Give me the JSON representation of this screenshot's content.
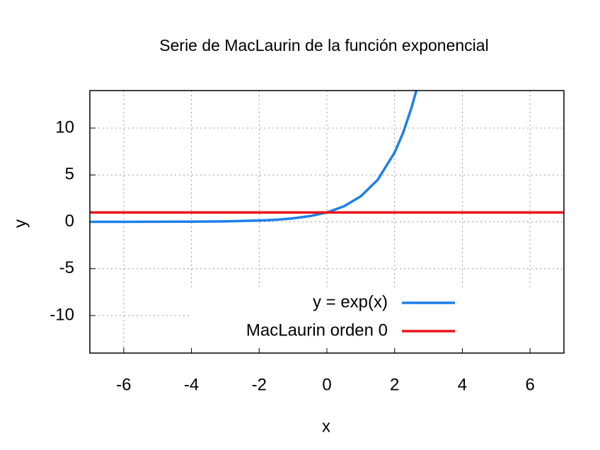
{
  "chart_data": {
    "type": "line",
    "title": "Serie de MacLaurin de la función exponencial",
    "x_label": "x",
    "y_label": "y",
    "xlim": [
      -7,
      7
    ],
    "ylim": [
      -14,
      14
    ],
    "xticks": [
      -6,
      -4,
      -2,
      0,
      2,
      4,
      6
    ],
    "yticks": [
      -10,
      -5,
      0,
      5,
      10
    ],
    "grid": true,
    "legend": "lower right",
    "series": [
      {
        "name": "y = exp(x)",
        "color": "#1f7fe8",
        "x": [
          -7,
          -6,
          -5,
          -4,
          -3,
          -2,
          -1.5,
          -1,
          -0.5,
          0,
          0.5,
          1,
          1.5,
          2,
          2.25,
          2.5,
          2.64
        ],
        "values": [
          0,
          0,
          0.01,
          0.02,
          0.05,
          0.14,
          0.22,
          0.37,
          0.61,
          1,
          1.65,
          2.72,
          4.48,
          7.39,
          9.49,
          12.18,
          14
        ]
      },
      {
        "name": "MacLaurin orden 0",
        "color": "#e8141c",
        "x": [
          -7,
          7
        ],
        "values": [
          1,
          1
        ]
      }
    ]
  }
}
